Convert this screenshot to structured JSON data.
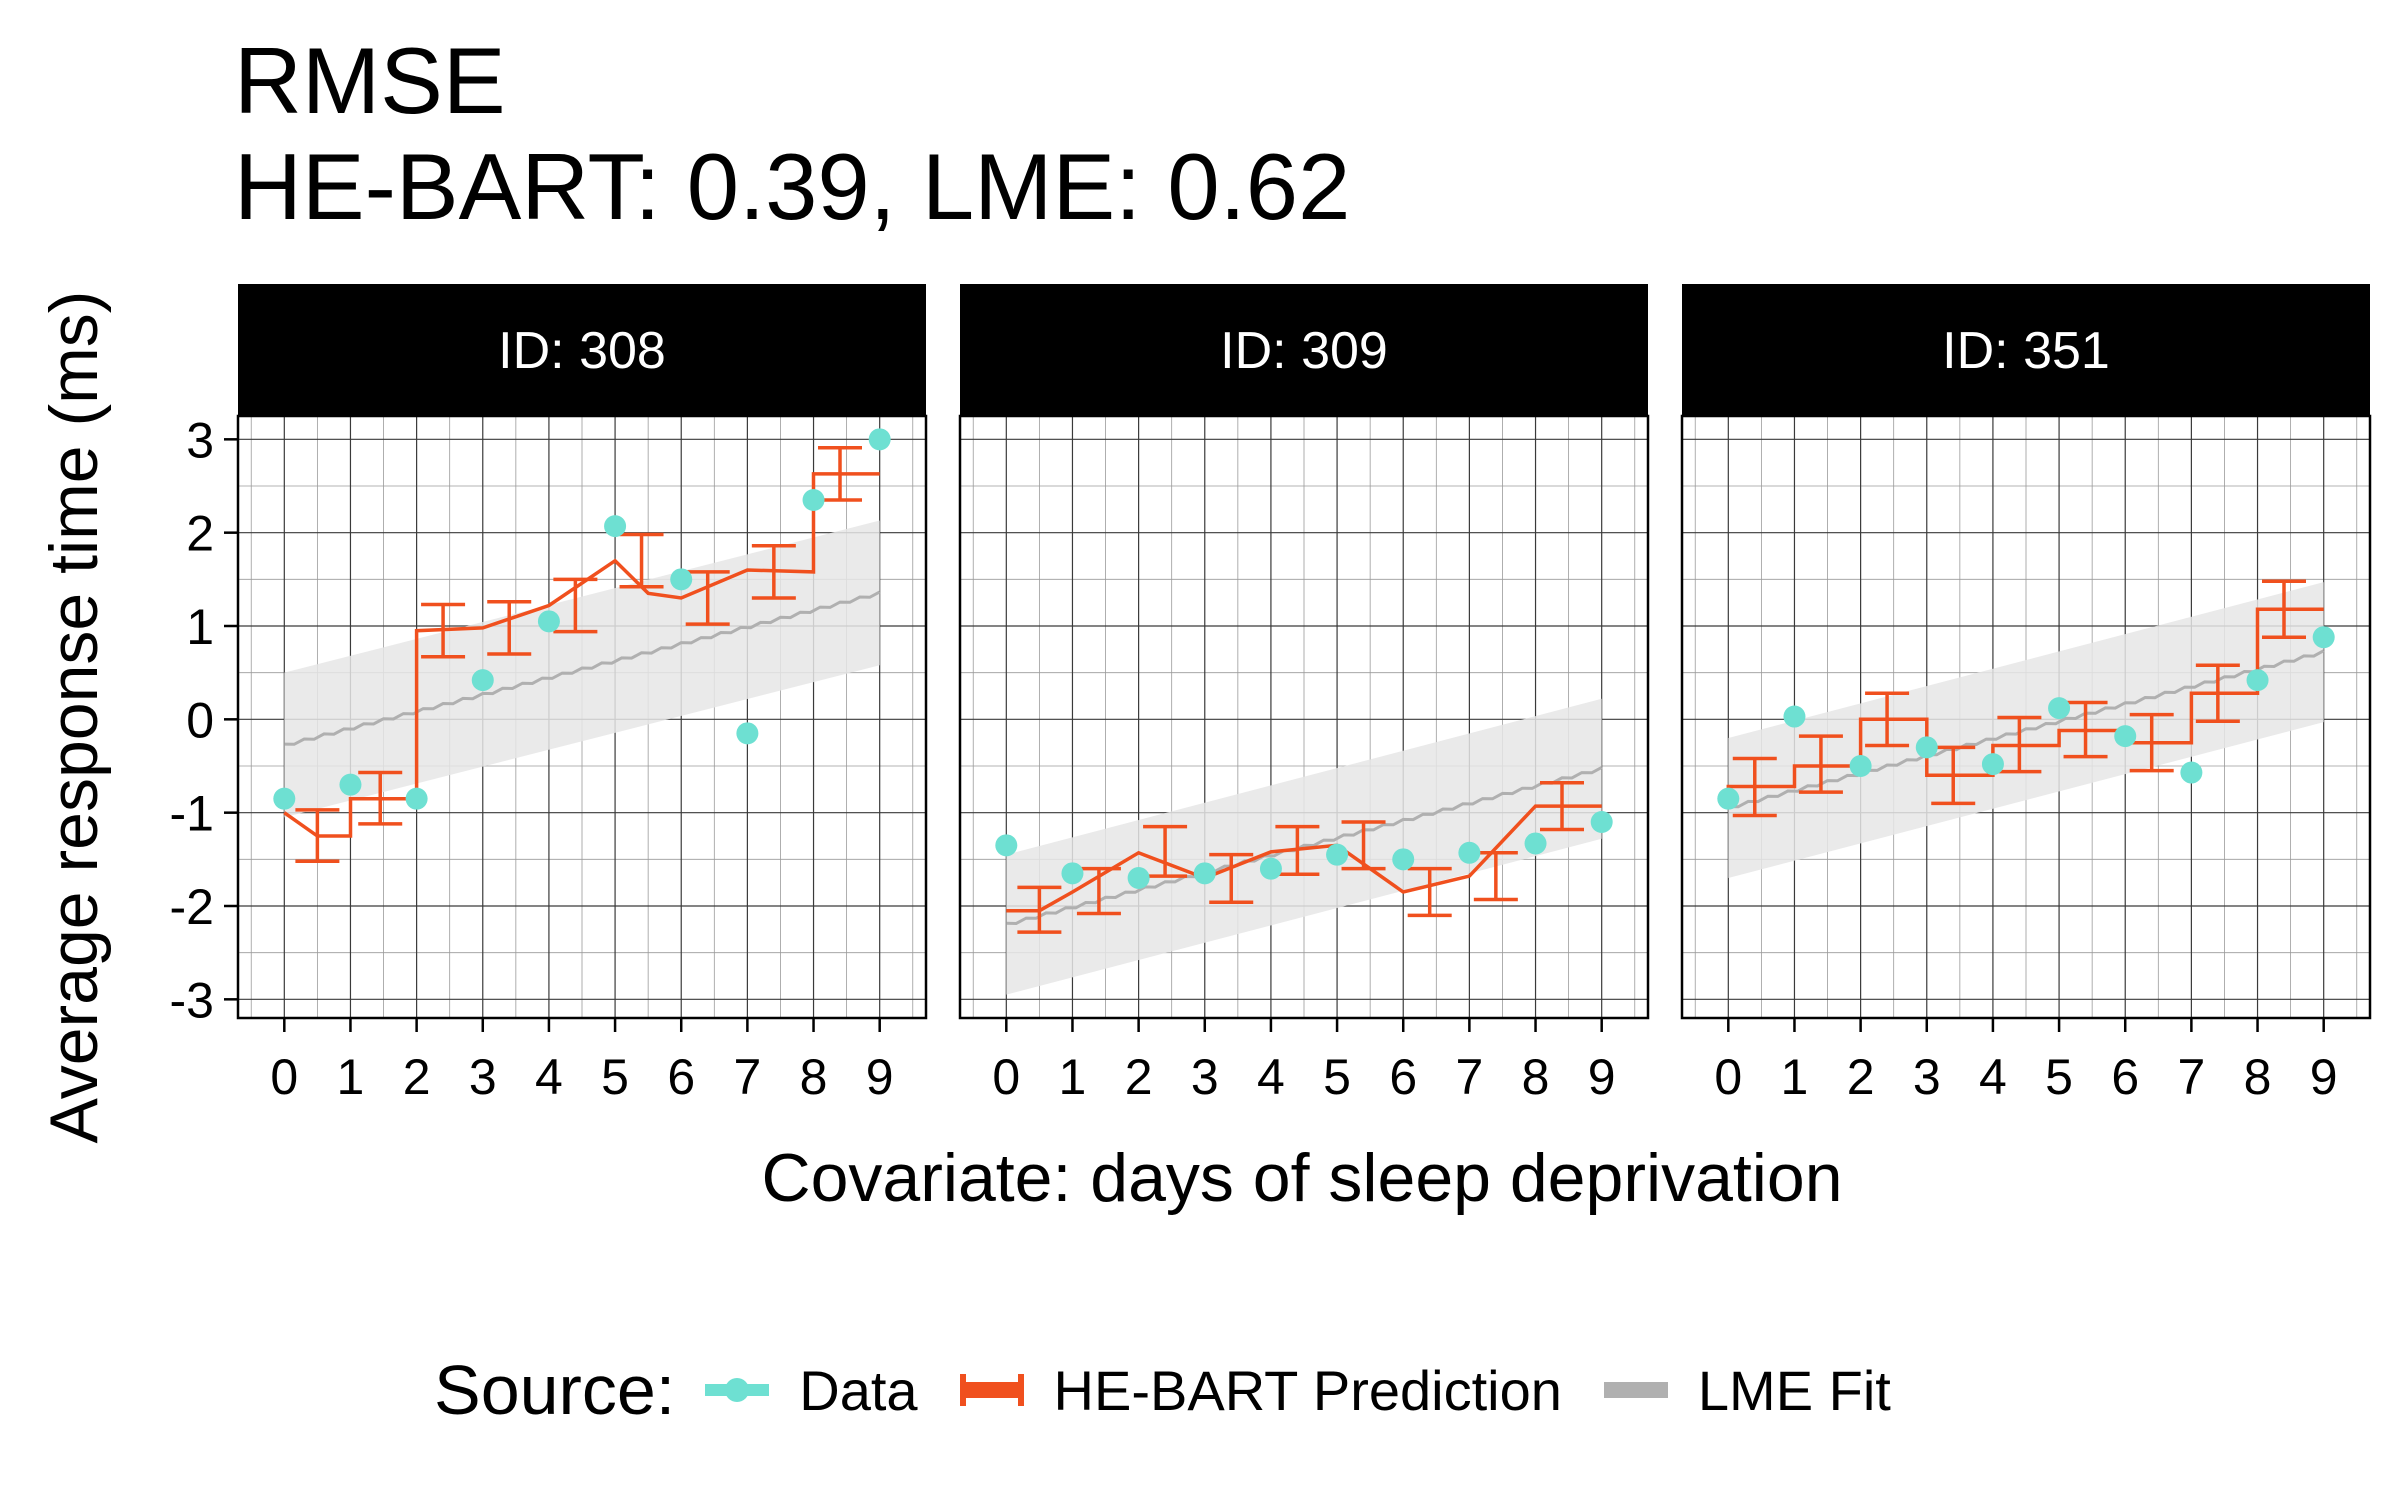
{
  "chart_data": {
    "type": "line",
    "title": "RMSE",
    "subtitle": "HE-BART: 0.39, LME: 0.62",
    "xlabel": "Covariate: days of sleep deprivation",
    "ylabel": "Average response time (ms)",
    "x_ticks": [
      0,
      1,
      2,
      3,
      4,
      5,
      6,
      7,
      8,
      9
    ],
    "y_ticks": [
      -3,
      -2,
      -1,
      0,
      1,
      2,
      3
    ],
    "xlim": [
      -0.7,
      9.7
    ],
    "ylim": [
      -3.2,
      3.25
    ],
    "grid": true,
    "legend": {
      "title": "Source:",
      "position": "bottom",
      "items": [
        {
          "label": "Data",
          "color": "#6ee0d2"
        },
        {
          "label": "HE-BART Prediction",
          "color": "#f0501e"
        },
        {
          "label": "LME Fit",
          "color": "#b0b0b0"
        }
      ]
    },
    "colors": {
      "data": "#6ee0d2",
      "prediction": "#f0501e",
      "lme_line": "#b0b0b0",
      "lme_band": "#e6e6e6"
    },
    "panels": [
      {
        "strip": "ID: 308",
        "data_x": [
          0,
          1,
          2,
          3,
          4,
          5,
          6,
          7,
          8,
          9
        ],
        "data_y": [
          -0.85,
          -0.7,
          -0.85,
          0.42,
          1.05,
          2.07,
          1.5,
          -0.15,
          2.35,
          3.0
        ],
        "pred_steps": [
          [
            0,
            -1.0
          ],
          [
            0.5,
            -1.25
          ],
          [
            1,
            -1.25
          ],
          [
            1,
            -0.85
          ],
          [
            2,
            -0.85
          ],
          [
            2,
            0.95
          ],
          [
            3,
            0.98
          ],
          [
            4,
            1.22
          ],
          [
            5,
            1.7
          ],
          [
            5.5,
            1.35
          ],
          [
            6,
            1.3
          ],
          [
            7,
            1.6
          ],
          [
            8,
            1.58
          ],
          [
            8,
            2.63
          ],
          [
            9,
            2.63
          ]
        ],
        "pred_errorbars": [
          {
            "x": 0.5,
            "y": -1.25,
            "lo": -1.52,
            "hi": -0.97
          },
          {
            "x": 1.45,
            "y": -0.85,
            "lo": -1.12,
            "hi": -0.57
          },
          {
            "x": 2.4,
            "y": 0.95,
            "lo": 0.67,
            "hi": 1.23
          },
          {
            "x": 3.4,
            "y": 0.98,
            "lo": 0.7,
            "hi": 1.26
          },
          {
            "x": 4.4,
            "y": 1.22,
            "lo": 0.94,
            "hi": 1.5
          },
          {
            "x": 5.4,
            "y": 1.7,
            "lo": 1.42,
            "hi": 1.98
          },
          {
            "x": 6.4,
            "y": 1.3,
            "lo": 1.02,
            "hi": 1.58
          },
          {
            "x": 7.4,
            "y": 1.58,
            "lo": 1.3,
            "hi": 1.86
          },
          {
            "x": 8.4,
            "y": 2.63,
            "lo": 2.35,
            "hi": 2.91
          }
        ],
        "lme": {
          "x": [
            0,
            9
          ],
          "y": [
            -0.28,
            1.35
          ],
          "band_lo": [
            -1.05,
            0.58
          ],
          "band_hi": [
            0.5,
            2.13
          ]
        }
      },
      {
        "strip": "ID: 309",
        "data_x": [
          0,
          1,
          2,
          3,
          4,
          5,
          6,
          7,
          8,
          9
        ],
        "data_y": [
          -1.35,
          -1.65,
          -1.7,
          -1.65,
          -1.6,
          -1.45,
          -1.5,
          -1.43,
          -1.33,
          -1.1
        ],
        "pred_steps": [
          [
            0,
            -2.05
          ],
          [
            0.5,
            -2.05
          ],
          [
            0.5,
            -2.05
          ],
          [
            1,
            -1.85
          ],
          [
            2,
            -1.43
          ],
          [
            3,
            -1.7
          ],
          [
            4,
            -1.42
          ],
          [
            5,
            -1.35
          ],
          [
            6,
            -1.85
          ],
          [
            7,
            -1.68
          ],
          [
            8,
            -0.93
          ],
          [
            9,
            -0.93
          ]
        ],
        "pred_errorbars": [
          {
            "x": 0.5,
            "y": -2.05,
            "lo": -2.28,
            "hi": -1.8
          },
          {
            "x": 1.4,
            "y": -1.85,
            "lo": -2.08,
            "hi": -1.6
          },
          {
            "x": 2.4,
            "y": -1.43,
            "lo": -1.68,
            "hi": -1.15
          },
          {
            "x": 3.4,
            "y": -1.7,
            "lo": -1.96,
            "hi": -1.45
          },
          {
            "x": 4.4,
            "y": -1.42,
            "lo": -1.66,
            "hi": -1.15
          },
          {
            "x": 5.4,
            "y": -1.35,
            "lo": -1.6,
            "hi": -1.1
          },
          {
            "x": 6.4,
            "y": -1.85,
            "lo": -2.1,
            "hi": -1.6
          },
          {
            "x": 7.4,
            "y": -1.68,
            "lo": -1.93,
            "hi": -1.43
          },
          {
            "x": 8.4,
            "y": -0.93,
            "lo": -1.18,
            "hi": -0.68
          }
        ],
        "lme": {
          "x": [
            0,
            9
          ],
          "y": [
            -2.2,
            -0.53
          ],
          "band_lo": [
            -2.95,
            -1.28
          ],
          "band_hi": [
            -1.45,
            0.22
          ]
        }
      },
      {
        "strip": "ID: 351",
        "data_x": [
          0,
          1,
          2,
          3,
          4,
          5,
          6,
          7,
          8,
          9
        ],
        "data_y": [
          -0.85,
          0.03,
          -0.5,
          -0.3,
          -0.48,
          0.12,
          -0.18,
          -0.57,
          0.42,
          0.88
        ],
        "pred_steps": [
          [
            0,
            -0.85
          ],
          [
            0,
            -0.72
          ],
          [
            1,
            -0.72
          ],
          [
            1,
            -0.5
          ],
          [
            2,
            -0.5
          ],
          [
            2,
            0.0
          ],
          [
            3,
            0.0
          ],
          [
            3,
            -0.6
          ],
          [
            4,
            -0.6
          ],
          [
            4,
            -0.28
          ],
          [
            5,
            -0.28
          ],
          [
            5,
            -0.12
          ],
          [
            6,
            -0.12
          ],
          [
            6,
            -0.25
          ],
          [
            7,
            -0.25
          ],
          [
            7,
            0.28
          ],
          [
            8,
            0.28
          ],
          [
            8,
            1.18
          ],
          [
            9,
            1.18
          ]
        ],
        "pred_errorbars": [
          {
            "x": 0.4,
            "y": -0.72,
            "lo": -1.03,
            "hi": -0.42
          },
          {
            "x": 1.4,
            "y": -0.5,
            "lo": -0.78,
            "hi": -0.18
          },
          {
            "x": 2.4,
            "y": 0.0,
            "lo": -0.28,
            "hi": 0.28
          },
          {
            "x": 3.4,
            "y": -0.6,
            "lo": -0.9,
            "hi": -0.3
          },
          {
            "x": 4.4,
            "y": -0.28,
            "lo": -0.56,
            "hi": 0.02
          },
          {
            "x": 5.4,
            "y": -0.12,
            "lo": -0.4,
            "hi": 0.18
          },
          {
            "x": 6.4,
            "y": -0.25,
            "lo": -0.55,
            "hi": 0.05
          },
          {
            "x": 7.4,
            "y": 0.28,
            "lo": -0.02,
            "hi": 0.58
          },
          {
            "x": 8.4,
            "y": 1.18,
            "lo": 0.88,
            "hi": 1.48
          }
        ],
        "lme": {
          "x": [
            0,
            9
          ],
          "y": [
            -0.95,
            0.72
          ],
          "band_lo": [
            -1.7,
            -0.03
          ],
          "band_hi": [
            -0.2,
            1.47
          ]
        }
      }
    ]
  }
}
